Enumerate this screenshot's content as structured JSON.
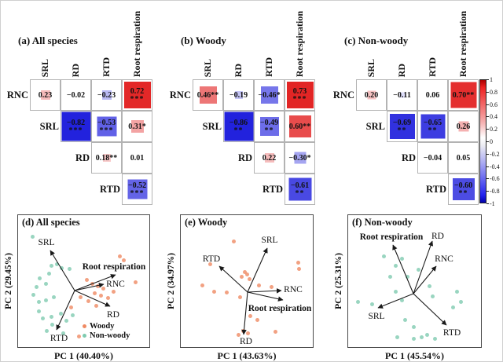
{
  "colors": {
    "positive": "#e22222",
    "negative": "#2222dd",
    "woody": "#ef8a63",
    "nonwoody": "#7fcbb0",
    "cell_border": "#b3b3b3"
  },
  "colorbar": {
    "ticks": [
      "1",
      "0.8",
      "0.6",
      "0.4",
      "0.2",
      "0",
      "-0.2",
      "-0.4",
      "-0.6",
      "-0.8",
      "-1"
    ],
    "max": 1,
    "min": -1
  },
  "chart_data": [
    {
      "type": "heatmap",
      "panel": "a",
      "title": "(a) All species",
      "columns": [
        "SRL",
        "RD",
        "RTD",
        "Root respiration"
      ],
      "rows": [
        "RNC",
        "SRL",
        "RD",
        "RTD"
      ],
      "cells": [
        [
          {
            "v": 0.23,
            "label": "0.23",
            "stars": ""
          },
          {
            "v": -0.02,
            "label": "−0.02",
            "stars": ""
          },
          {
            "v": -0.23,
            "label": "−0.23",
            "stars": ""
          },
          {
            "v": 0.72,
            "label": "0.72",
            "stars": "***"
          }
        ],
        [
          {
            "v": -0.82,
            "label": "−0.82",
            "stars": "***"
          },
          {
            "v": -0.53,
            "label": "−0.53",
            "stars": "***"
          },
          {
            "v": 0.31,
            "label": "0.31*",
            "stars": ""
          }
        ],
        [
          {
            "v": 0.18,
            "label": "0.18**",
            "stars": ""
          },
          {
            "v": 0.01,
            "label": "0.01",
            "stars": ""
          }
        ],
        [
          {
            "v": -0.52,
            "label": "−0.52",
            "stars": "***"
          }
        ]
      ]
    },
    {
      "type": "heatmap",
      "panel": "b",
      "title": "(b) Woody",
      "columns": [
        "SRL",
        "RD",
        "RTD",
        "Root respiration"
      ],
      "rows": [
        "RNC",
        "SRL",
        "RD",
        "RTD"
      ],
      "cells": [
        [
          {
            "v": 0.46,
            "label": "0.46**",
            "stars": ""
          },
          {
            "v": -0.19,
            "label": "−0.19",
            "stars": ""
          },
          {
            "v": -0.46,
            "label": "−0.46*",
            "stars": ""
          },
          {
            "v": 0.73,
            "label": "0.73",
            "stars": "***"
          }
        ],
        [
          {
            "v": -0.86,
            "label": "−0.86",
            "stars": "**"
          },
          {
            "v": -0.49,
            "label": "−0.49",
            "stars": "**"
          },
          {
            "v": 0.6,
            "label": "0.60**",
            "stars": ""
          }
        ],
        [
          {
            "v": 0.22,
            "label": "0.22",
            "stars": ""
          },
          {
            "v": -0.3,
            "label": "−0.30*",
            "stars": ""
          }
        ],
        [
          {
            "v": -0.61,
            "label": "−0.61",
            "stars": "**"
          }
        ]
      ]
    },
    {
      "type": "heatmap",
      "panel": "c",
      "title": "(c) Non-woody",
      "columns": [
        "SRL",
        "RD",
        "RTD",
        "Root respiration"
      ],
      "rows": [
        "RNC",
        "SRL",
        "RD",
        "RTD"
      ],
      "cells": [
        [
          {
            "v": 0.2,
            "label": "0.20",
            "stars": ""
          },
          {
            "v": -0.11,
            "label": "−0.11",
            "stars": ""
          },
          {
            "v": 0.06,
            "label": "0.06",
            "stars": ""
          },
          {
            "v": 0.7,
            "label": "0.70**",
            "stars": ""
          }
        ],
        [
          {
            "v": -0.69,
            "label": "−0.69",
            "stars": "**"
          },
          {
            "v": -0.65,
            "label": "−0.65",
            "stars": "**"
          },
          {
            "v": 0.26,
            "label": "0.26",
            "stars": ""
          }
        ],
        [
          {
            "v": -0.04,
            "label": "−0.04",
            "stars": ""
          },
          {
            "v": 0.05,
            "label": "0.05",
            "stars": ""
          }
        ],
        [
          {
            "v": -0.6,
            "label": "−0.60",
            "stars": "**"
          }
        ]
      ]
    },
    {
      "type": "scatter",
      "panel": "d",
      "title": "(d) All species",
      "xlabel": "PC 1 (40.40%)",
      "ylabel": "PC 2 (29.45%)",
      "origin": [
        72,
        96
      ],
      "arrows": [
        {
          "label": "SRL",
          "tip": [
            41,
            45
          ],
          "label_pos": [
            36,
            35
          ],
          "bold": false
        },
        {
          "label": "Root respiration",
          "tip": [
            124,
            76
          ],
          "label_pos": [
            122,
            66
          ],
          "bold": true
        },
        {
          "label": "RNC",
          "tip": [
            109,
            88
          ],
          "label_pos": [
            124,
            88
          ],
          "bold": false
        },
        {
          "label": "RD",
          "tip": [
            117,
            116
          ],
          "label_pos": [
            121,
            127
          ],
          "bold": false
        },
        {
          "label": "RTD",
          "tip": [
            49,
            146
          ],
          "label_pos": [
            52,
            157
          ],
          "bold": false
        }
      ],
      "points": {
        "woody": [
          [
            129,
            52
          ],
          [
            134,
            57
          ],
          [
            149,
            85
          ],
          [
            87,
            82
          ],
          [
            94,
            87
          ],
          [
            101,
            90
          ],
          [
            108,
            93
          ],
          [
            97,
            99
          ],
          [
            105,
            102
          ],
          [
            114,
            105
          ],
          [
            89,
            109
          ],
          [
            99,
            115
          ],
          [
            79,
            104
          ],
          [
            121,
            97
          ],
          [
            67,
            117
          ],
          [
            77,
            154
          ]
        ],
        "nonwoody": [
          [
            18,
            27
          ],
          [
            42,
            64
          ],
          [
            49,
            62
          ],
          [
            55,
            67
          ],
          [
            65,
            68
          ],
          [
            39,
            74
          ],
          [
            27,
            80
          ],
          [
            35,
            87
          ],
          [
            23,
            91
          ],
          [
            19,
            101
          ],
          [
            26,
            110
          ],
          [
            35,
            108
          ],
          [
            45,
            104
          ],
          [
            26,
            122
          ],
          [
            31,
            131
          ],
          [
            42,
            129
          ],
          [
            54,
            125
          ],
          [
            61,
            134
          ],
          [
            43,
            139
          ],
          [
            69,
            127
          ],
          [
            57,
            150
          ],
          [
            36,
            147
          ]
        ]
      },
      "legend": [
        {
          "label": "Woody",
          "group": "woody"
        },
        {
          "label": "Non-woody",
          "group": "nonwoody"
        }
      ]
    },
    {
      "type": "scatter",
      "panel": "e",
      "title": "(e) Woody",
      "xlabel": "PC 1 (43.63%)",
      "ylabel": "PC 2 (34.97%)",
      "origin": [
        85,
        98
      ],
      "arrows": [
        {
          "label": "SRL",
          "tip": [
            110,
            42
          ],
          "label_pos": [
            113,
            32
          ],
          "bold": false
        },
        {
          "label": "RTD",
          "tip": [
            49,
            65
          ],
          "label_pos": [
            39,
            56
          ],
          "bold": false
        },
        {
          "label": "RNC",
          "tip": [
            128,
            96
          ],
          "label_pos": [
            143,
            95
          ],
          "bold": false
        },
        {
          "label": "Root respiration",
          "tip": [
            130,
            108
          ],
          "label_pos": [
            126,
            119
          ],
          "bold": true
        },
        {
          "label": "RD",
          "tip": [
            80,
            152
          ],
          "label_pos": [
            83,
            161
          ],
          "bold": false
        }
      ],
      "points": {
        "woody": [
          [
            67,
            33
          ],
          [
            37,
            62
          ],
          [
            27,
            89
          ],
          [
            42,
            97
          ],
          [
            58,
            98
          ],
          [
            75,
            104
          ],
          [
            81,
            72
          ],
          [
            84,
            75
          ],
          [
            77,
            78
          ],
          [
            87,
            81
          ],
          [
            99,
            89
          ],
          [
            115,
            91
          ],
          [
            149,
            60
          ],
          [
            150,
            68
          ],
          [
            88,
            128
          ],
          [
            97,
            133
          ],
          [
            79,
            147
          ],
          [
            85,
            150
          ],
          [
            73,
            152
          ],
          [
            120,
            148
          ]
        ],
        "nonwoody": []
      },
      "legend": []
    },
    {
      "type": "scatter",
      "panel": "f",
      "title": "(f) Non-woody",
      "xlabel": "PC 1 (45.54%)",
      "ylabel": "PC 2 (25.31%)",
      "origin": [
        83,
        100
      ],
      "arrows": [
        {
          "label": "Root respiration",
          "tip": [
            57,
            38
          ],
          "label_pos": [
            55,
            28
          ],
          "bold": true
        },
        {
          "label": "RD",
          "tip": [
            107,
            33
          ],
          "label_pos": [
            114,
            27
          ],
          "bold": false
        },
        {
          "label": "RNC",
          "tip": [
            112,
            65
          ],
          "label_pos": [
            122,
            56
          ],
          "bold": false
        },
        {
          "label": "SRL",
          "tip": [
            38,
            118
          ],
          "label_pos": [
            36,
            129
          ],
          "bold": false
        },
        {
          "label": "RTD",
          "tip": [
            125,
            140
          ],
          "label_pos": [
            132,
            150
          ],
          "bold": false
        }
      ],
      "points": {
        "woody": [],
        "nonwoody": [
          [
            45,
            52
          ],
          [
            68,
            55
          ],
          [
            60,
            64
          ],
          [
            53,
            78
          ],
          [
            75,
            78
          ],
          [
            60,
            97
          ],
          [
            12,
            110
          ],
          [
            103,
            90
          ],
          [
            107,
            103
          ],
          [
            138,
            97
          ],
          [
            143,
            110
          ],
          [
            133,
            117
          ],
          [
            68,
            108
          ],
          [
            72,
            133
          ],
          [
            62,
            155
          ],
          [
            83,
            157
          ],
          [
            93,
            155
          ],
          [
            100,
            152
          ],
          [
            110,
            157
          ],
          [
            83,
            142
          ],
          [
            30,
            113
          ],
          [
            89,
            69
          ]
        ]
      },
      "legend": []
    }
  ]
}
